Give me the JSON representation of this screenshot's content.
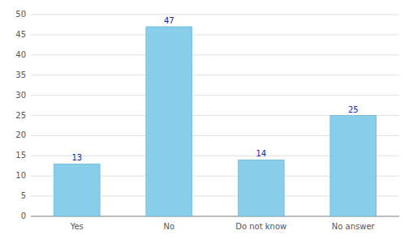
{
  "chart_data": {
    "type": "bar",
    "categories": [
      "Yes",
      "No",
      "Do not know",
      "No answer"
    ],
    "values": [
      13,
      47,
      14,
      25
    ],
    "color": "#87CEEB",
    "ylim": [
      0,
      50
    ],
    "yticks": [
      0,
      5,
      10,
      15,
      20,
      25,
      30,
      35,
      40,
      45,
      50
    ],
    "grid": true,
    "data_labels": true
  }
}
